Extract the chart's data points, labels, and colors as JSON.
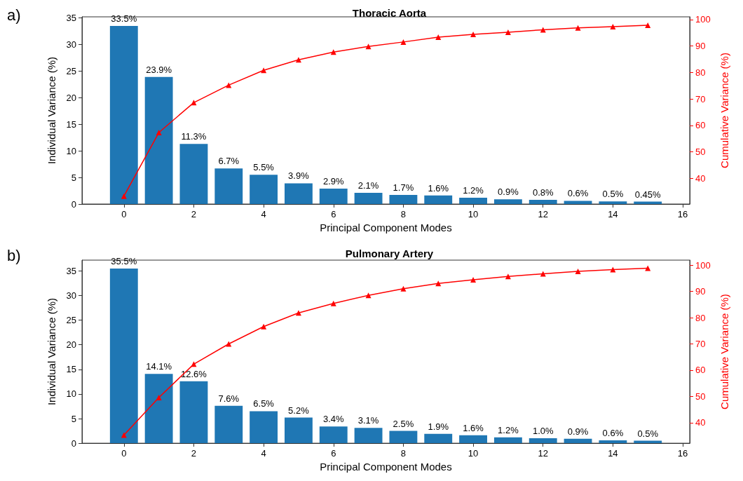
{
  "chart_data": [
    {
      "type": "bar",
      "title": "Thoracic Aorta",
      "xlabel": "Principal Component Modes",
      "ylabel": "Individual Variance (%)",
      "y2label": "Cumulative Variance (%)",
      "annotations": [
        "a)"
      ],
      "x": [
        0,
        1,
        2,
        3,
        4,
        5,
        6,
        7,
        8,
        9,
        10,
        11,
        12,
        13,
        14,
        15
      ],
      "xlim": [
        -1.2,
        16.2
      ],
      "xticks": [
        0,
        2,
        4,
        6,
        8,
        10,
        12,
        14,
        16
      ],
      "ylim": [
        0,
        35.2
      ],
      "yticks": [
        0,
        5,
        10,
        15,
        20,
        25,
        30,
        35
      ],
      "y2lim": [
        30.3,
        101
      ],
      "y2ticks": [
        40,
        50,
        60,
        70,
        80,
        90,
        100
      ],
      "grid": false,
      "marker": "triangle",
      "series": [
        {
          "color": "#1f77b4",
          "values": [
            33.5,
            23.9,
            11.3,
            6.7,
            5.5,
            3.9,
            2.9,
            2.1,
            1.7,
            1.6,
            1.2,
            0.9,
            0.8,
            0.6,
            0.5,
            0.45
          ],
          "value_labels": [
            "33.5%",
            "23.9%",
            "11.3%",
            "6.7%",
            "5.5%",
            "3.9%",
            "2.9%",
            "2.1%",
            "1.7%",
            "1.6%",
            "1.2%",
            "0.9%",
            "0.8%",
            "0.6%",
            "0.5%",
            "0.45%"
          ]
        },
        {
          "type": "line",
          "axis": "y2",
          "color": "#ff0000",
          "values": [
            33.3,
            57.3,
            68.6,
            75.2,
            80.8,
            84.8,
            87.7,
            89.8,
            91.5,
            93.3,
            94.4,
            95.2,
            96.1,
            96.8,
            97.3,
            97.8
          ]
        }
      ]
    },
    {
      "type": "bar",
      "title": "Pulmonary Artery",
      "xlabel": "Principal Component Modes",
      "ylabel": "Individual Variance (%)",
      "y2label": "Cumulative Variance (%)",
      "annotations": [
        "b)"
      ],
      "x": [
        0,
        1,
        2,
        3,
        4,
        5,
        6,
        7,
        8,
        9,
        10,
        11,
        12,
        13,
        14,
        15
      ],
      "xlim": [
        -1.2,
        16.2
      ],
      "xticks": [
        0,
        2,
        4,
        6,
        8,
        10,
        12,
        14,
        16
      ],
      "ylim": [
        0,
        37.2
      ],
      "yticks": [
        0,
        5,
        10,
        15,
        20,
        25,
        30,
        35
      ],
      "y2lim": [
        32.2,
        101.9
      ],
      "y2ticks": [
        40,
        50,
        60,
        70,
        80,
        90,
        100
      ],
      "grid": false,
      "marker": "triangle",
      "series": [
        {
          "color": "#1f77b4",
          "values": [
            35.5,
            14.1,
            12.6,
            7.6,
            6.5,
            5.2,
            3.4,
            3.1,
            2.5,
            1.9,
            1.6,
            1.2,
            1.0,
            0.9,
            0.6,
            0.5
          ],
          "value_labels": [
            "35.5%",
            "14.1%",
            "12.6%",
            "7.6%",
            "6.5%",
            "5.2%",
            "3.4%",
            "3.1%",
            "2.5%",
            "1.9%",
            "1.6%",
            "1.2%",
            "1.0%",
            "0.9%",
            "0.6%",
            "0.5%"
          ]
        },
        {
          "type": "line",
          "axis": "y2",
          "color": "#ff0000",
          "values": [
            35.3,
            49.6,
            62.3,
            70.0,
            76.6,
            81.8,
            85.4,
            88.5,
            91.0,
            93.0,
            94.4,
            95.7,
            96.7,
            97.6,
            98.3,
            98.8
          ]
        }
      ]
    }
  ]
}
